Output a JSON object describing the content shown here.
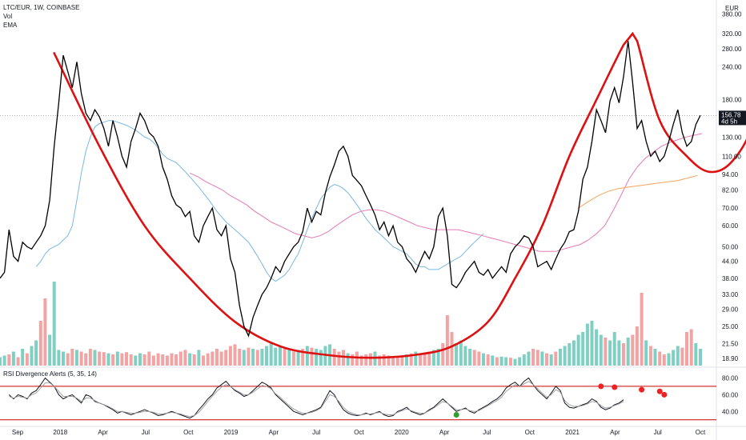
{
  "legend": {
    "symbol": "LTC/EUR, 1W, COINBASE",
    "vol": "Vol",
    "ema": "EMA",
    "rsi": "RSI Divergence Alerts (5, 35, 14)"
  },
  "colors": {
    "price": "#000000",
    "ema_blue": "#7ab8e0",
    "ema_pink": "#e57ab8",
    "ema_orange": "#f4a460",
    "cup": "#dd1111",
    "vol_up": "#7fcfc3",
    "vol_down": "#f2a3a3",
    "rsi_main": "#131722",
    "rsi_signal": "#9a9a9a",
    "rsi_level": "#cc0000",
    "bull_dot": "#2e9e2e",
    "bear_dot": "#ee2222"
  },
  "chart_data": [
    {
      "type": "line",
      "panel": "price",
      "scale": "log",
      "currency": "EUR",
      "y_ticks": [
        380,
        320,
        280,
        240,
        180,
        130,
        110,
        94,
        82,
        70,
        60,
        50,
        44,
        38,
        33,
        29,
        25,
        21.5,
        18.9
      ],
      "x_ticks": [
        "Sep",
        "2018",
        "Apr",
        "Jul",
        "Oct",
        "2019",
        "Apr",
        "Jul",
        "Oct",
        "2020",
        "Apr",
        "Jul",
        "Oct",
        "2021",
        "Apr",
        "Jul",
        "Oct"
      ],
      "last_price": "156.78",
      "countdown": "4d 5h",
      "series": [
        {
          "role": "price",
          "values": [
            38,
            40,
            58,
            46,
            44,
            52,
            50,
            49,
            52,
            55,
            60,
            75,
            120,
            175,
            265,
            230,
            200,
            250,
            190,
            160,
            150,
            165,
            155,
            140,
            120,
            150,
            130,
            110,
            100,
            125,
            140,
            160,
            150,
            135,
            130,
            120,
            100,
            90,
            78,
            72,
            70,
            65,
            68,
            55,
            52,
            60,
            65,
            70,
            58,
            55,
            60,
            45,
            40,
            30,
            25,
            23,
            27,
            30,
            33,
            35,
            38,
            42,
            40,
            44,
            47,
            50,
            52,
            57,
            70,
            62,
            68,
            66,
            80,
            92,
            102,
            115,
            120,
            110,
            93,
            89,
            85,
            78,
            72,
            66,
            58,
            62,
            55,
            60,
            52,
            50,
            45,
            43,
            40,
            44,
            48,
            45,
            50,
            65,
            70,
            55,
            36,
            35,
            37,
            40,
            42,
            44,
            40,
            39,
            41,
            38,
            40,
            42,
            40,
            47,
            50,
            52,
            55,
            54,
            50,
            42,
            43,
            44,
            41,
            45,
            49,
            52,
            57,
            58,
            68,
            90,
            100,
            125,
            165,
            150,
            135,
            178,
            200,
            175,
            220,
            300,
            210,
            140,
            150,
            125,
            110,
            115,
            105,
            110,
            125,
            145,
            165,
            135,
            120,
            125,
            145,
            157
          ],
          "count_weeks": 156
        },
        {
          "role": "ema-blue",
          "values": [
            42,
            44,
            47,
            49,
            50,
            51,
            53,
            55,
            60,
            75,
            95,
            115,
            130,
            142,
            146,
            148,
            150,
            150,
            148,
            146,
            144,
            141,
            138,
            134,
            130,
            128,
            124,
            118,
            112,
            108,
            106,
            104,
            100,
            96,
            92,
            88,
            84,
            80,
            76,
            72,
            68,
            65,
            62,
            60,
            58,
            56,
            54,
            52,
            49,
            46,
            43,
            40,
            38,
            37,
            38,
            39,
            41,
            44,
            47,
            52,
            58,
            64,
            70,
            76,
            80,
            84,
            86,
            85,
            83,
            80,
            76,
            72,
            68,
            64,
            61,
            58,
            56,
            54,
            52,
            50,
            49,
            48,
            47,
            45,
            43,
            42,
            42,
            41,
            41,
            41,
            42,
            43,
            44,
            45,
            46,
            48,
            50,
            52,
            54,
            56
          ],
          "start_week": 8,
          "step_weeks": 1.0
        },
        {
          "role": "ema-pink",
          "values": [
            95,
            92,
            88,
            85,
            82,
            78,
            75,
            72,
            68,
            65,
            62,
            60,
            58,
            56,
            55,
            54,
            55,
            57,
            60,
            63,
            66,
            68,
            69,
            69,
            68,
            66,
            64,
            62,
            60,
            59,
            58,
            58,
            58,
            58,
            57,
            56,
            55,
            54,
            53,
            52,
            51,
            50,
            49,
            48,
            48,
            48,
            49,
            50,
            51,
            53,
            56,
            60,
            68,
            78,
            90,
            100,
            108,
            114,
            120,
            124,
            127,
            130,
            132,
            134
          ],
          "start_week": 42,
          "step_weeks": 1.8
        },
        {
          "role": "ema-orange",
          "values": [
            70,
            74,
            78,
            81,
            83,
            84,
            85,
            86,
            87,
            88,
            89,
            91,
            93
          ],
          "start_week": 128,
          "step_weeks": 2.2
        },
        {
          "role": "cup-pattern",
          "values": [
            270,
            120,
            60,
            38,
            26,
            21,
            19.5,
            19,
            19.5,
            21,
            26,
            38,
            60,
            110,
            180,
            290,
            320,
            300,
            150,
            110,
            96,
            105,
            150,
            330
          ],
          "weeks": [
            12,
            22,
            32,
            42,
            52,
            62,
            72,
            82,
            92,
            100,
            108,
            114,
            120,
            126,
            132,
            138,
            140,
            141,
            146,
            152,
            157,
            162,
            167,
            172
          ]
        }
      ]
    },
    {
      "type": "bar",
      "panel": "volume",
      "up": [
        1,
        1,
        0,
        1,
        0,
        1,
        0,
        1,
        1,
        0,
        0,
        1,
        1,
        1,
        1,
        0,
        0,
        1,
        0,
        0,
        0,
        1,
        0,
        0,
        1,
        0,
        1,
        0,
        0,
        0,
        1,
        1,
        0,
        0,
        0,
        0,
        0,
        0,
        0,
        0,
        0,
        0,
        1,
        0,
        1,
        0,
        0,
        0,
        0,
        0,
        0,
        0,
        0,
        0,
        1,
        0,
        1,
        0,
        1,
        1,
        1,
        1,
        1,
        0,
        1,
        0,
        1,
        0,
        1,
        0,
        1,
        1,
        1,
        1,
        0,
        0,
        0,
        1,
        0,
        0,
        0,
        0,
        0,
        1,
        0,
        0,
        0,
        0,
        0,
        0,
        1,
        0,
        1,
        0,
        0,
        0,
        1,
        1,
        0,
        0,
        0,
        1,
        1,
        1,
        1,
        0,
        0,
        1,
        0,
        1,
        0,
        1,
        1,
        0,
        1,
        1,
        1,
        1,
        0,
        0,
        1,
        0,
        1,
        0,
        1,
        1,
        1,
        1,
        1,
        1,
        1,
        1,
        1,
        1,
        0,
        1,
        1,
        1,
        0,
        1,
        0,
        0,
        0,
        1,
        0,
        1,
        0,
        0,
        1,
        1,
        1,
        0,
        0,
        0,
        1,
        1
      ],
      "values": [
        15,
        18,
        20,
        25,
        15,
        30,
        22,
        35,
        45,
        80,
        120,
        55,
        150,
        28,
        25,
        22,
        30,
        28,
        25,
        22,
        30,
        28,
        25,
        24,
        22,
        20,
        25,
        22,
        24,
        20,
        18,
        22,
        20,
        25,
        18,
        22,
        20,
        18,
        22,
        20,
        25,
        28,
        22,
        20,
        28,
        18,
        22,
        25,
        30,
        25,
        28,
        35,
        38,
        30,
        28,
        32,
        30,
        28,
        30,
        35,
        40,
        32,
        35,
        30,
        28,
        25,
        28,
        30,
        35,
        32,
        30,
        28,
        35,
        38,
        30,
        25,
        28,
        22,
        20,
        25,
        18,
        20,
        22,
        25,
        18,
        20,
        18,
        16,
        15,
        18,
        20,
        22,
        25,
        20,
        22,
        25,
        28,
        30,
        40,
        90,
        60,
        40,
        45,
        35,
        30,
        28,
        25,
        22,
        20,
        18,
        15,
        16,
        15,
        14,
        12,
        15,
        20,
        25,
        30,
        28,
        25,
        22,
        20,
        25,
        30,
        35,
        40,
        45,
        55,
        60,
        75,
        80,
        65,
        55,
        50,
        45,
        60,
        45,
        40,
        50,
        55,
        70,
        130,
        45,
        35,
        30,
        25,
        20,
        22,
        28,
        35,
        32,
        60,
        65,
        40,
        30
      ],
      "y_ticks": []
    },
    {
      "type": "line",
      "panel": "rsi",
      "y_ticks": [
        80,
        60,
        40
      ],
      "levels": [
        70,
        30
      ],
      "series": [
        {
          "role": "rsi",
          "values": [
            60,
            55,
            60,
            58,
            55,
            62,
            65,
            72,
            80,
            75,
            70,
            60,
            55,
            58,
            60,
            55,
            50,
            60,
            58,
            52,
            50,
            48,
            45,
            42,
            38,
            40,
            38,
            36,
            38,
            40,
            42,
            40,
            38,
            35,
            36,
            38,
            40,
            38,
            36,
            34,
            32,
            35,
            42,
            48,
            55,
            60,
            68,
            72,
            76,
            70,
            65,
            62,
            58,
            60,
            65,
            70,
            75,
            72,
            68,
            60,
            55,
            50,
            45,
            40,
            38,
            36,
            38,
            40,
            42,
            45,
            55,
            65,
            60,
            50,
            42,
            38,
            36,
            35,
            36,
            38,
            36,
            38,
            40,
            36,
            34,
            35,
            40,
            42,
            45,
            40,
            38,
            36,
            38,
            42,
            45,
            50,
            55,
            50,
            45,
            40,
            42,
            44,
            40,
            38,
            42,
            45,
            48,
            52,
            55,
            60,
            68,
            72,
            75,
            70,
            76,
            80,
            72,
            65,
            60,
            55,
            62,
            70,
            65,
            50,
            45,
            44,
            46,
            48,
            50,
            55,
            52,
            45,
            42,
            44,
            48,
            50,
            54
          ],
          "start_week": 2,
          "step_weeks": 1.0
        },
        {
          "role": "rsi-signal",
          "values": [
            58,
            56,
            58,
            57,
            56,
            60,
            62,
            68,
            74,
            74,
            70,
            64,
            58,
            58,
            58,
            56,
            52,
            56,
            56,
            53,
            50,
            48,
            46,
            43,
            40,
            40,
            39,
            38,
            38,
            39,
            40,
            40,
            39,
            37,
            37,
            38,
            39,
            38,
            37,
            35,
            34,
            35,
            39,
            45,
            52,
            58,
            64,
            69,
            72,
            70,
            66,
            63,
            60,
            60,
            63,
            67,
            71,
            70,
            67,
            61,
            57,
            52,
            47,
            43,
            40,
            38,
            38,
            39,
            41,
            44,
            52,
            60,
            58,
            52,
            45,
            40,
            38,
            36,
            36,
            37,
            37,
            38,
            39,
            37,
            36,
            36,
            39,
            41,
            43,
            41,
            39,
            38,
            38,
            41,
            44,
            48,
            52,
            50,
            46,
            42,
            42,
            43,
            41,
            40,
            41,
            44,
            47,
            50,
            53,
            57,
            64,
            68,
            72,
            70,
            73,
            76,
            72,
            67,
            62,
            57,
            60,
            66,
            63,
            53,
            48,
            46,
            46,
            47,
            49,
            52,
            51,
            47,
            44,
            45,
            47,
            49,
            52
          ],
          "start_week": 2,
          "step_weeks": 1.0
        }
      ],
      "bullish_dots": [
        {
          "week": 101,
          "rsi": 36
        }
      ],
      "bearish_dots": [
        {
          "week": 133,
          "rsi": 70
        },
        {
          "week": 136,
          "rsi": 69
        },
        {
          "week": 142,
          "rsi": 66
        },
        {
          "week": 146,
          "rsi": 64
        },
        {
          "week": 147,
          "rsi": 60
        }
      ]
    }
  ]
}
